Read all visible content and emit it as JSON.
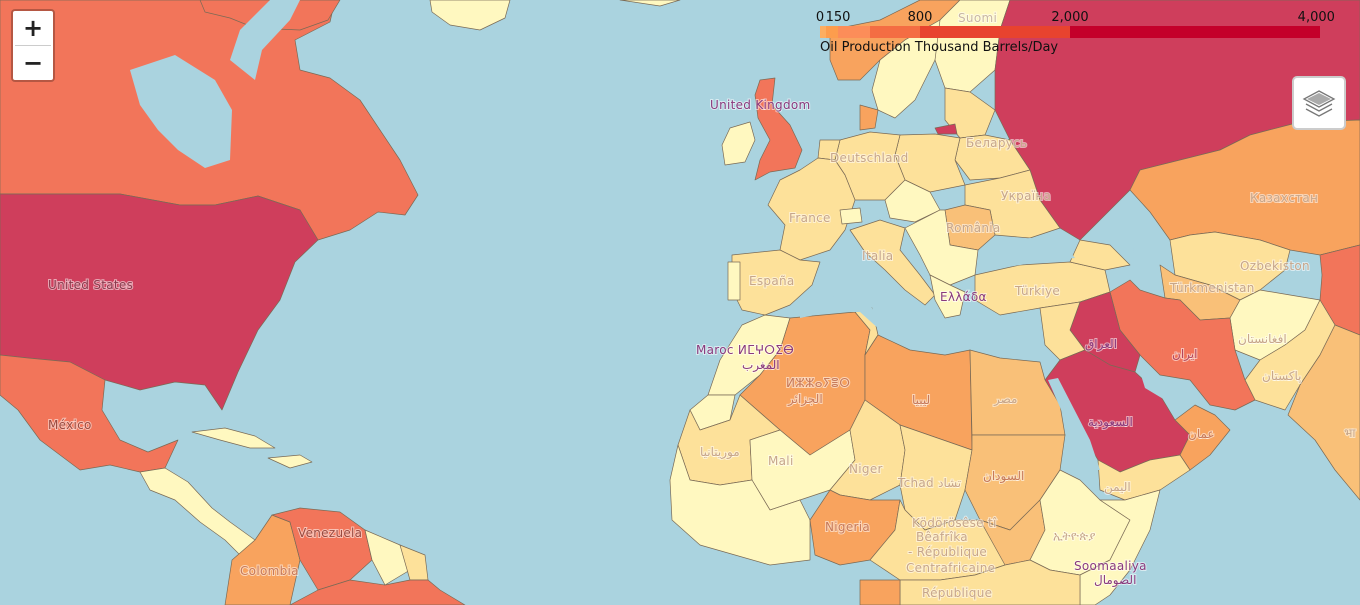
{
  "legend": {
    "caption": "Oil Production Thousand Barrels/Day",
    "ticks": [
      "0",
      "150",
      "800",
      "2,000",
      "4,000"
    ],
    "bins": [
      {
        "from": 0,
        "to": 50,
        "color": "#fdae61"
      },
      {
        "from": 50,
        "to": 150,
        "color": "#fd9d4d"
      },
      {
        "from": 150,
        "to": 400,
        "color": "#fc8d59"
      },
      {
        "from": 400,
        "to": 800,
        "color": "#f46d43"
      },
      {
        "from": 800,
        "to": 2000,
        "color": "#e8432f"
      },
      {
        "from": 2000,
        "to": 4000,
        "color": "#c4002a"
      }
    ]
  },
  "controls": {
    "zoom_in": "+",
    "zoom_out": "−"
  },
  "colors": {
    "ocean": "#aad3df",
    "lowest": "#fff8c0",
    "low": "#fde19a",
    "mid": "#f9c078",
    "midhigh": "#f8a35e",
    "high": "#f2755a",
    "highest": "#cf3e5c"
  },
  "labels": {
    "united_kingdom": "United Kingdom",
    "suomi": "Suomi",
    "deutschland": "Deutschland",
    "belarus": "Беларусь",
    "france": "France",
    "ukraine": "Україна",
    "romania": "România",
    "kazakhstan": "Казахстан",
    "italia": "Italia",
    "espana": "España",
    "turkiye": "Türkiye",
    "uzbekistan": "Ozbekiston",
    "turkmenistan": "Türkmenistan",
    "greece": "Ελλάδα",
    "maroc": "Maroc ⵍⵎⵖⵔⵉⴱ",
    "maroc_ar": "المغرب",
    "iraq": "العراق",
    "iran": "ایران",
    "afghanistan": "افغانستان",
    "algeria_tf": "ⵍⵣⵣⴰⵢⴻⵔ",
    "algeria": "الجزائر",
    "libya": "ليبيا",
    "egypt": "مصر",
    "pakistan": "پاکستان",
    "saudi": "السعودية",
    "oman": "عمان",
    "mauritania": "موريتانيا",
    "mali": "Mali",
    "niger": "Niger",
    "tchad": "Tchad تشاد",
    "sudan": "السودان",
    "yemen": "اليمن",
    "nigeria": "Nigeria",
    "ethiopia": "ኢትዮጵያ",
    "somalia": "Soomaaliya",
    "somalia_ar": "الصومال",
    "car1": "Ködörösêse tî",
    "car2": "Bêafrîka",
    "car3": "- République",
    "car4": "Centrafricaine",
    "republique": "République",
    "united_states": "United States",
    "mexico": "México",
    "venezuela": "Venezuela",
    "colombia": "Colombia",
    "india_partial": "भा"
  }
}
